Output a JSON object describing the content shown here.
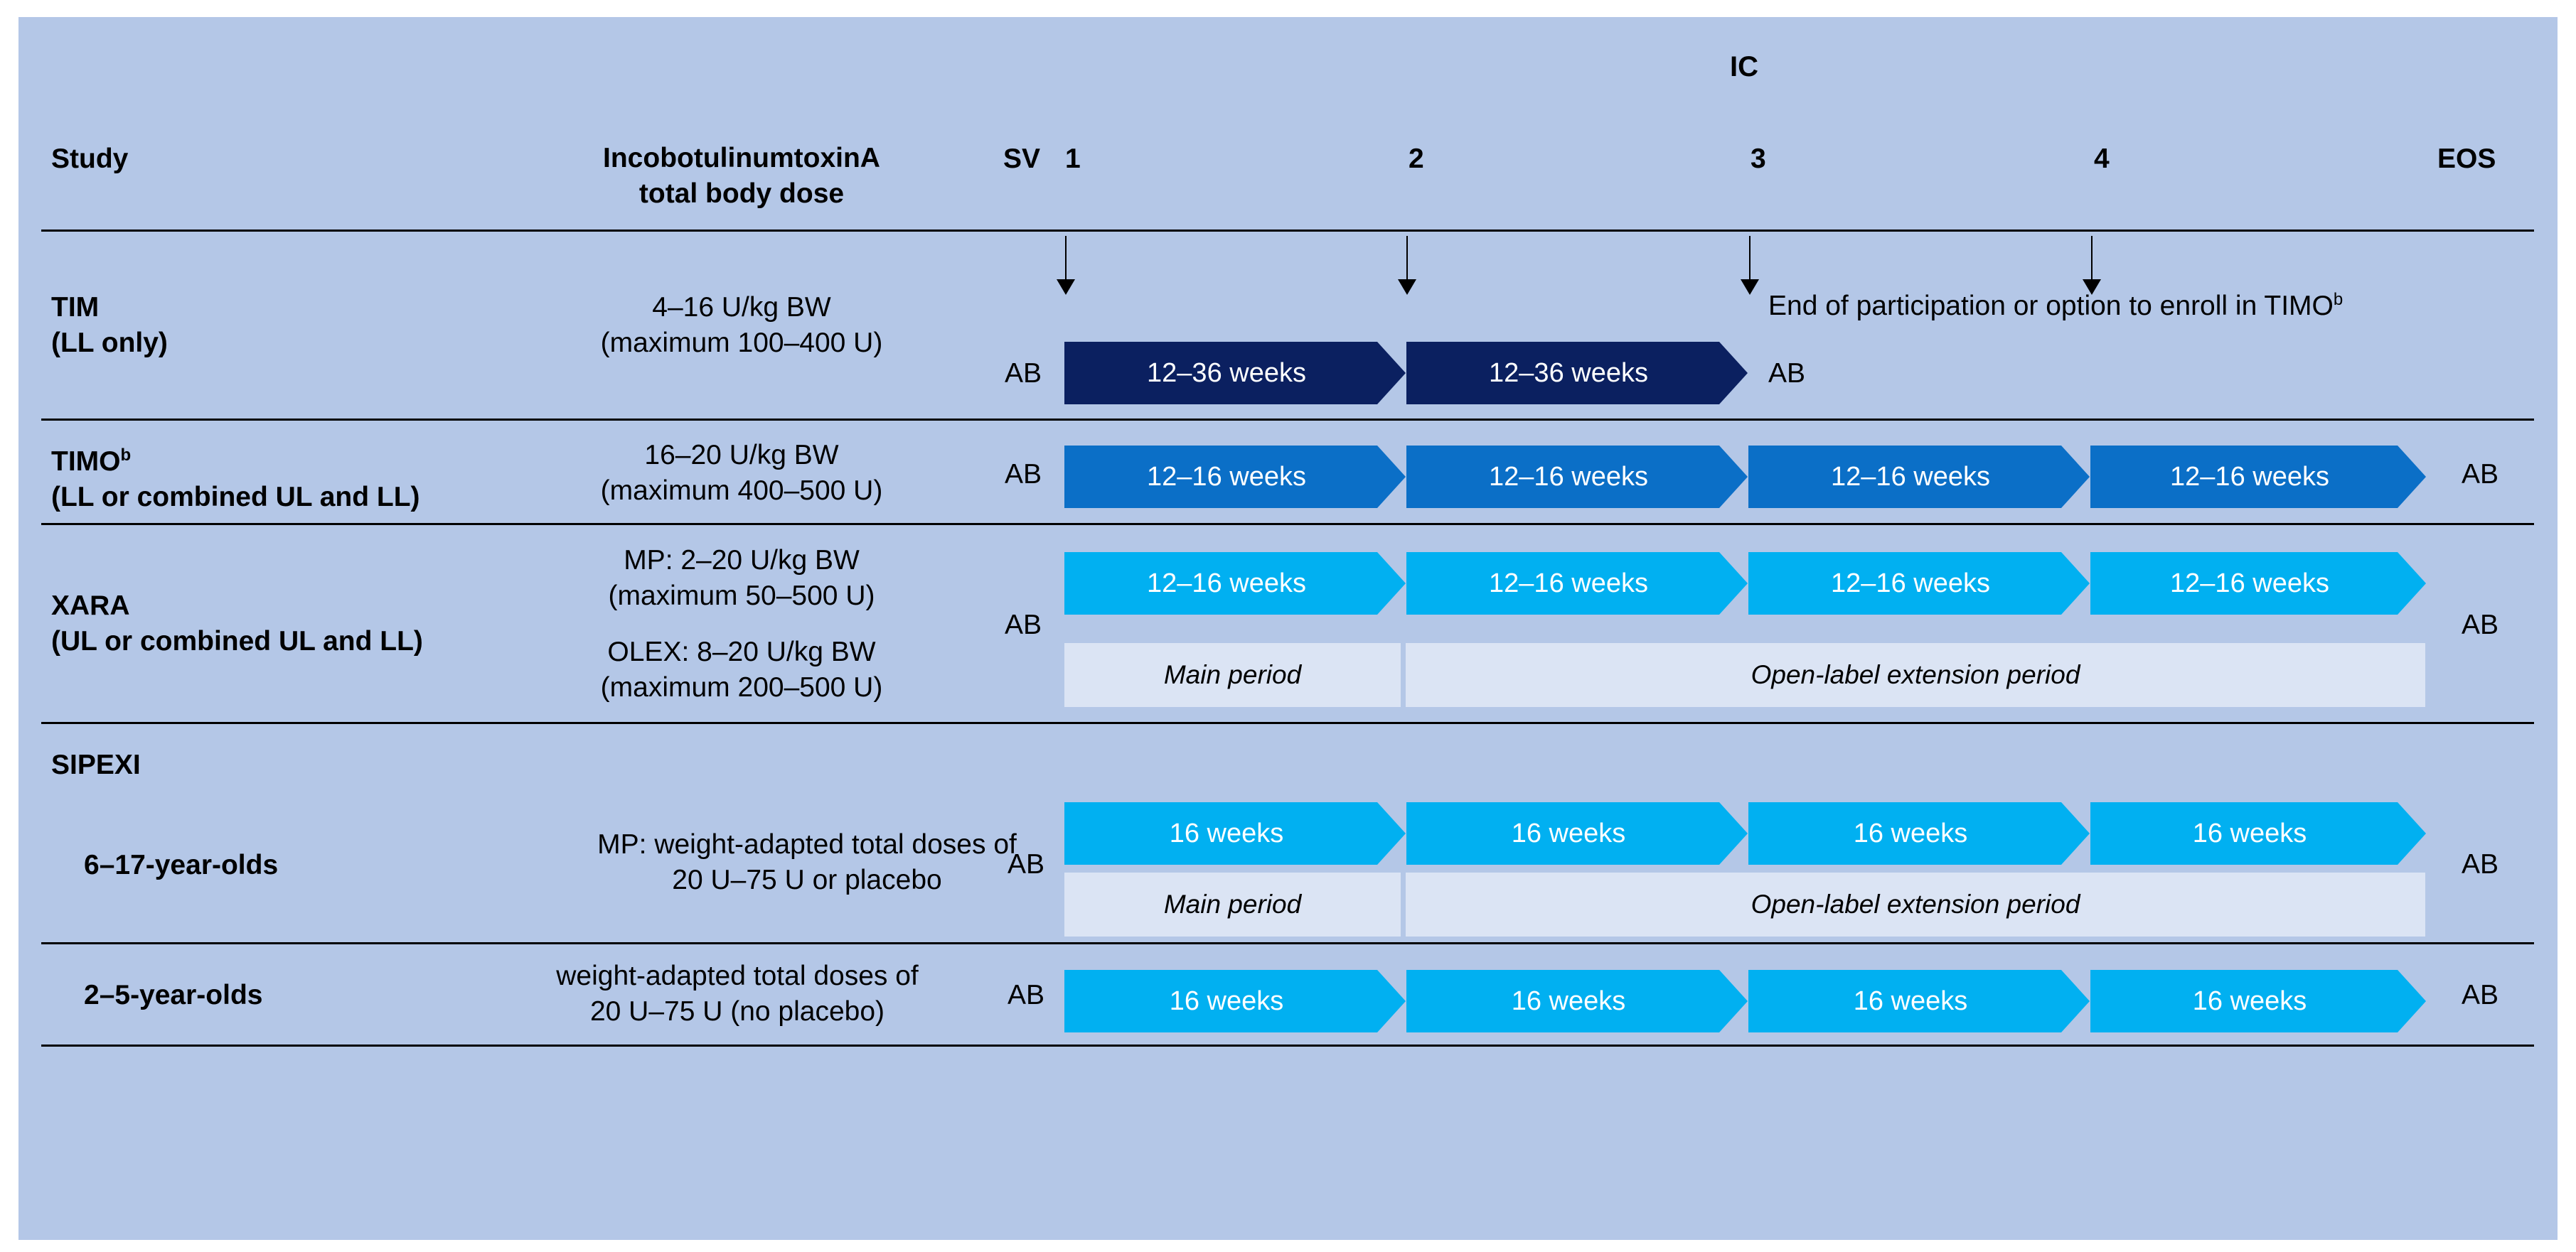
{
  "header": {
    "ic": "IC",
    "study": "Study",
    "dose_line1": "IncobotulinumtoxinA",
    "dose_line2": "total body dose",
    "sv": "SV",
    "visits": [
      "1",
      "2",
      "3",
      "4"
    ],
    "eos": "EOS"
  },
  "ab_label": "AB",
  "rows": {
    "tim": {
      "name_line1": "TIM",
      "name_line2": "(LL only)",
      "dose_line1": "4–16 U/kg BW",
      "dose_line2": "(maximum 100–400 U)",
      "segments": [
        "12–36 weeks",
        "12–36 weeks"
      ],
      "note": "End of participation or option to enroll in TIMO",
      "note_sup": "b"
    },
    "timo": {
      "name_line1": "TIMO",
      "name_sup": "b",
      "name_line2": "(LL or combined UL and LL)",
      "dose_line1": "16–20 U/kg BW",
      "dose_line2": "(maximum 400–500 U)",
      "segments": [
        "12–16 weeks",
        "12–16 weeks",
        "12–16 weeks",
        "12–16 weeks"
      ]
    },
    "xara": {
      "name_line1": "XARA",
      "name_line2": "(UL or combined UL and LL)",
      "dose_mp_line1": "MP: 2–20 U/kg BW",
      "dose_mp_line2": "(maximum 50–500 U)",
      "dose_olex_line1": "OLEX: 8–20 U/kg BW",
      "dose_olex_line2": "(maximum 200–500 U)",
      "segments": [
        "12–16 weeks",
        "12–16 weeks",
        "12–16 weeks",
        "12–16 weeks"
      ],
      "main_period": "Main period",
      "ole_period": "Open-label extension period"
    },
    "sipexi": {
      "title": "SIPEXI",
      "older": {
        "label": "6–17-year-olds",
        "dose_line1": "MP: weight-adapted total doses of",
        "dose_line2": "20 U–75 U or placebo",
        "segments": [
          "16 weeks",
          "16 weeks",
          "16 weeks",
          "16 weeks"
        ],
        "main_period": "Main period",
        "ole_period": "Open-label extension period"
      },
      "younger": {
        "label": "2–5-year-olds",
        "dose_line1": "weight-adapted total doses of",
        "dose_line2": "20 U–75 U (no placebo)",
        "segments": [
          "16 weeks",
          "16 weeks",
          "16 weeks",
          "16 weeks"
        ]
      }
    }
  },
  "colors": {
    "background": "#b4c7e7",
    "tim_segment": "#0b2060",
    "timo_segment": "#0b6fc7",
    "light_segment": "#01b0f1",
    "period_box": "#dbe4f4"
  }
}
